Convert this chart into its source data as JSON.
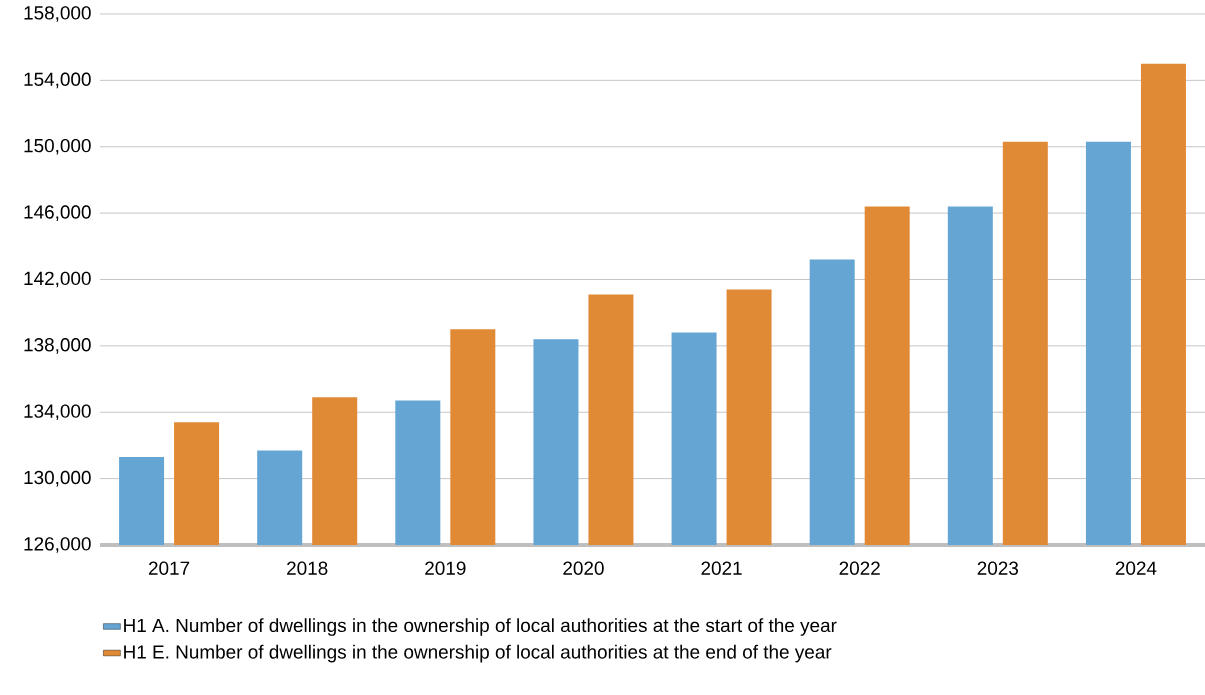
{
  "chart_data": {
    "type": "bar",
    "categories": [
      "2017",
      "2018",
      "2019",
      "2020",
      "2021",
      "2022",
      "2023",
      "2024"
    ],
    "series": [
      {
        "name": "H1 A. Number of dwellings in the ownership of local authorities at the start of the year",
        "color": "#64a5d3",
        "values": [
          131300,
          131700,
          134700,
          138400,
          138800,
          143200,
          146400,
          150300
        ]
      },
      {
        "name": "H1 E. Number of dwellings in the ownership of local authorities at the end of the year",
        "color": "#e08a35",
        "values": [
          133400,
          134900,
          139000,
          141100,
          141400,
          146400,
          150300,
          155000
        ]
      }
    ],
    "ylim": [
      126000,
      158000
    ],
    "yticks": [
      {
        "value": 126000,
        "label": "126,000"
      },
      {
        "value": 130000,
        "label": "130,000"
      },
      {
        "value": 134000,
        "label": "134,000"
      },
      {
        "value": 138000,
        "label": "138,000"
      },
      {
        "value": 142000,
        "label": "142,000"
      },
      {
        "value": 146000,
        "label": "146,000"
      },
      {
        "value": 150000,
        "label": "150,000"
      },
      {
        "value": 154000,
        "label": "154,000"
      },
      {
        "value": 158000,
        "label": "158,000"
      }
    ],
    "grid": "y",
    "legend": "bottom left"
  }
}
